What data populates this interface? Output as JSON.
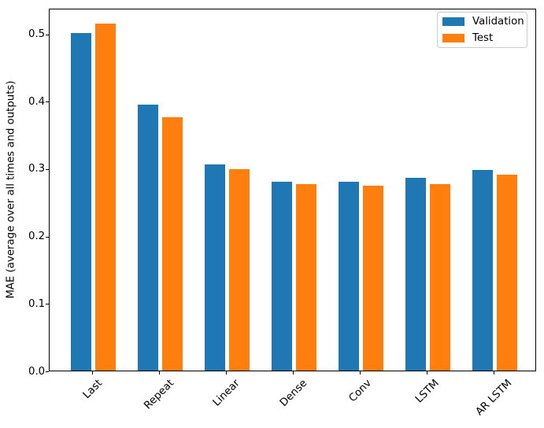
{
  "chart_data": {
    "type": "bar",
    "title": "",
    "xlabel": "",
    "ylabel": "MAE (average over all times and outputs)",
    "categories": [
      "Last",
      "Repeat",
      "Linear",
      "Dense",
      "Conv",
      "LSTM",
      "AR LSTM"
    ],
    "series": [
      {
        "name": "Validation",
        "color": "#1f77b4",
        "values": [
          0.501,
          0.395,
          0.306,
          0.28,
          0.28,
          0.286,
          0.298
        ]
      },
      {
        "name": "Test",
        "color": "#ff7f0e",
        "values": [
          0.515,
          0.376,
          0.299,
          0.277,
          0.274,
          0.277,
          0.291
        ]
      }
    ],
    "ylim": [
      0,
      0.538
    ],
    "yticks": {
      "values": [
        0.0,
        0.1,
        0.2,
        0.3,
        0.4,
        0.5
      ],
      "labels": [
        "0.0",
        "0.1",
        "0.2",
        "0.3",
        "0.4",
        "0.5"
      ]
    },
    "xticklabel_rotation_deg": 45,
    "grid": false,
    "legend": {
      "position": "upper right",
      "entries": [
        "Validation",
        "Test"
      ]
    }
  }
}
